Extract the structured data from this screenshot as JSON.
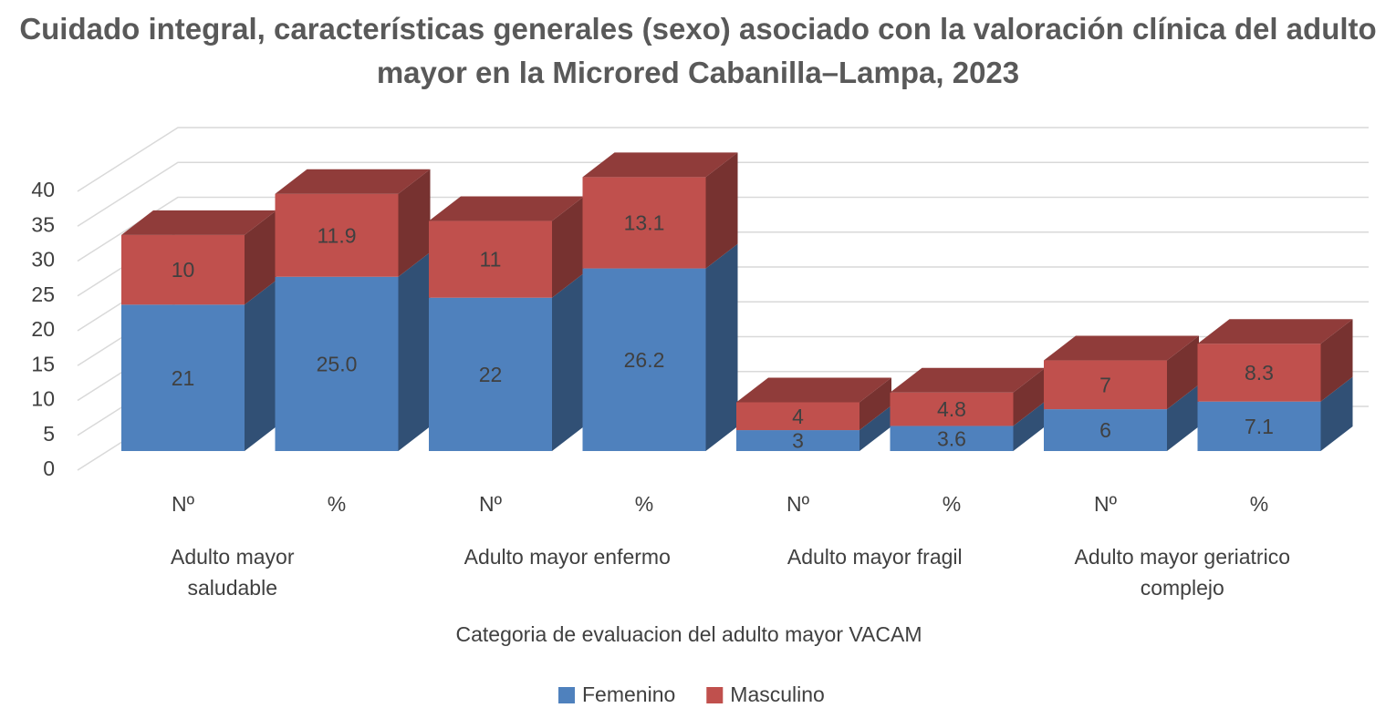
{
  "chart_data": {
    "type": "bar3d_stacked",
    "title": "Cuidado integral, características generales (sexo) asociado con la valoración clínica del adulto mayor en la Microred  Cabanilla–Lampa, 2023",
    "x_label": "Categoria de evaluacion del adulto mayor VACAM",
    "categories": [
      "Nº",
      "%",
      "Nº",
      "%",
      "Nº",
      "%",
      "Nº",
      "%"
    ],
    "groups": [
      "Adulto mayor saludable",
      "Adulto mayor enfermo",
      "Adulto mayor fragil",
      "Adulto mayor geriatrico complejo"
    ],
    "series": [
      {
        "name": "Femenino",
        "color": "#4f81bd",
        "values": [
          21,
          25.0,
          22,
          26.2,
          3,
          3.6,
          6,
          7.1
        ],
        "value_labels": [
          "21",
          "25.0",
          "22",
          "26.2",
          "3",
          "3.6",
          "6",
          "7.1"
        ]
      },
      {
        "name": "Masculino",
        "color": "#c0504d",
        "values": [
          10,
          11.9,
          11,
          13.1,
          4,
          4.8,
          7,
          8.3
        ]
      }
    ],
    "ylim": [
      0,
      40
    ],
    "yticks": [
      0,
      5,
      10,
      15,
      20,
      25,
      30,
      35,
      40
    ],
    "grid": true,
    "legend": "bottom"
  }
}
